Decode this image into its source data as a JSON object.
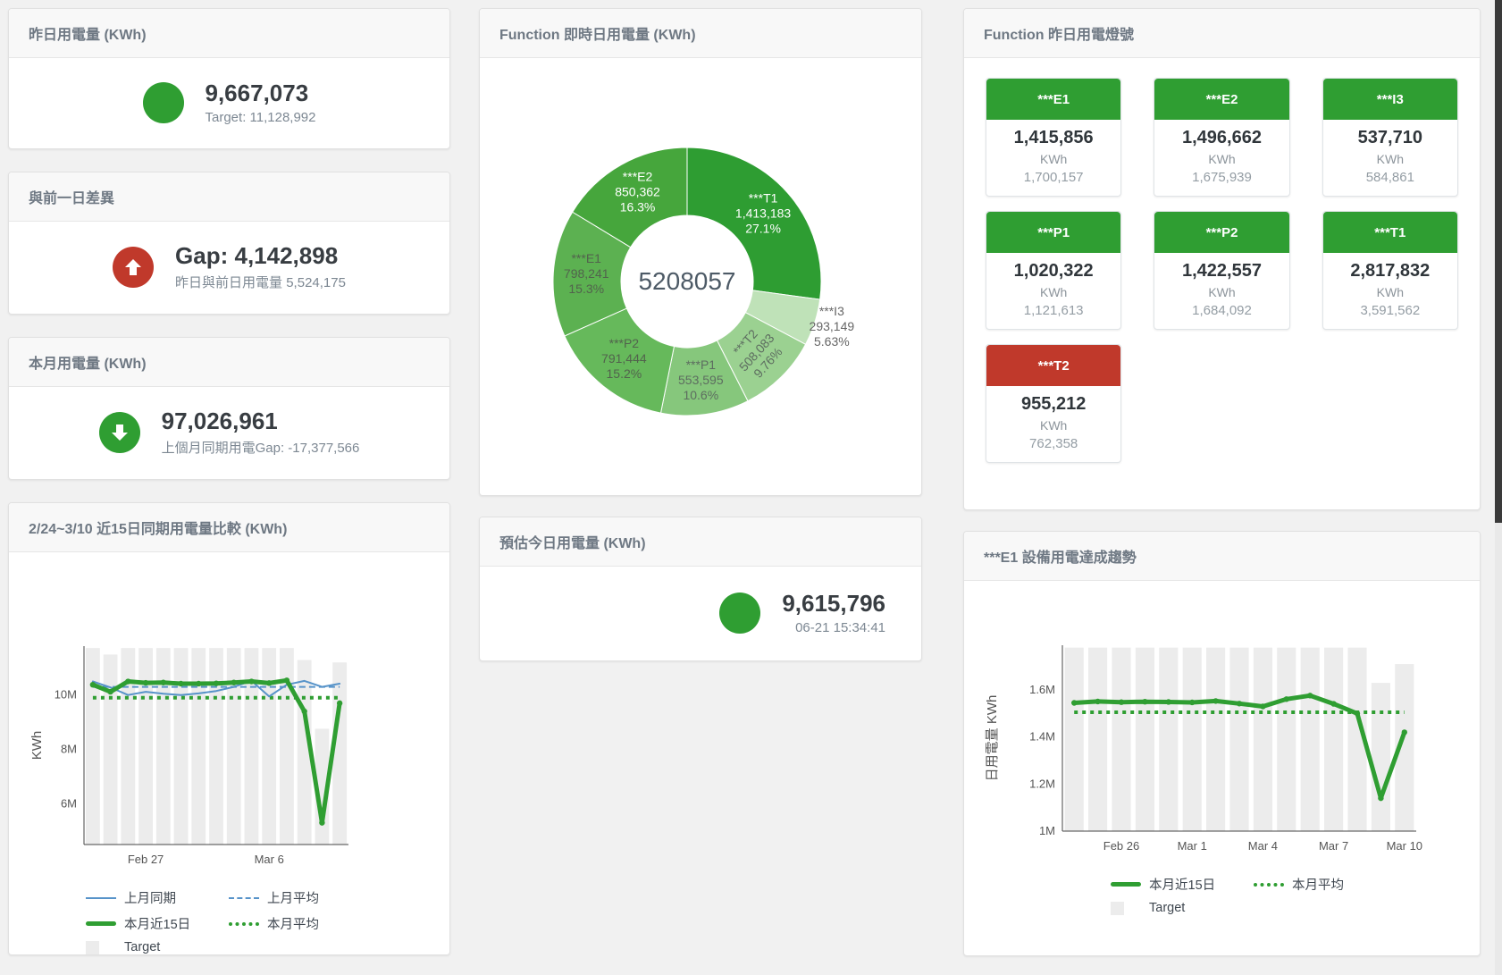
{
  "colors": {
    "green": "#2f9e32",
    "red": "#c0392b",
    "blue_line": "#5793c9",
    "bar_gray": "#ececec"
  },
  "cards": {
    "yesterday": {
      "title": "昨日用電量 (KWh)",
      "value": "9,667,073",
      "sub": "Target: 11,128,992",
      "color": "#2f9e32",
      "arrow": "none"
    },
    "gap_prev_day": {
      "title": "與前一日差異",
      "value": "Gap: 4,142,898",
      "sub": "昨日與前日用電量 5,524,175",
      "color": "#c0392b",
      "arrow": "up"
    },
    "month": {
      "title": "本月用電量 (KWh)",
      "value": "97,026,961",
      "sub": "上個月同期用電Gap: -17,377,566",
      "color": "#2f9e32",
      "arrow": "down"
    },
    "estimate": {
      "title": "預估今日用電量 (KWh)",
      "value": "9,615,796",
      "sub": "06-21 15:34:41",
      "color": "#2f9e32",
      "arrow": "none"
    }
  },
  "lights": {
    "title": "Function 昨日用電燈號",
    "unit": "KWh",
    "tiles": [
      {
        "name": "***E1",
        "value": "1,415,856",
        "unit": "KWh",
        "target": "1,700,157",
        "status_color": "#2f9e32"
      },
      {
        "name": "***E2",
        "value": "1,496,662",
        "unit": "KWh",
        "target": "1,675,939",
        "status_color": "#2f9e32"
      },
      {
        "name": "***I3",
        "value": "537,710",
        "unit": "KWh",
        "target": "584,861",
        "status_color": "#2f9e32"
      },
      {
        "name": "***P1",
        "value": "1,020,322",
        "unit": "KWh",
        "target": "1,121,613",
        "status_color": "#2f9e32"
      },
      {
        "name": "***P2",
        "value": "1,422,557",
        "unit": "KWh",
        "target": "1,684,092",
        "status_color": "#2f9e32"
      },
      {
        "name": "***T1",
        "value": "2,817,832",
        "unit": "KWh",
        "target": "3,591,562",
        "status_color": "#2f9e32"
      },
      {
        "name": "***T2",
        "value": "955,212",
        "unit": "KWh",
        "target": "762,358",
        "status_color": "#c0392b"
      }
    ]
  },
  "chart_data": [
    {
      "type": "pie",
      "title": "Function 即時日用電量 (KWh)",
      "center_total": "5208057",
      "slices": [
        {
          "name": "***T1",
          "value": 1413183,
          "display": "1,413,183",
          "pct": "27.1%",
          "color": "#2e9d32",
          "label_color": "#ffffff"
        },
        {
          "name": "***I3",
          "value": 293149,
          "display": "293,149",
          "pct": "5.63%",
          "color": "#bfe2b8",
          "label_color": "#666666",
          "outside": true
        },
        {
          "name": "***T2",
          "value": 508083,
          "display": "508,083",
          "pct": "9.76%",
          "color": "#9bd191",
          "label_color": "#5d6d60",
          "rotate": -48
        },
        {
          "name": "***P1",
          "value": 553595,
          "display": "553,595",
          "pct": "10.6%",
          "color": "#86c77c",
          "label_color": "#5d6d60"
        },
        {
          "name": "***P2",
          "value": 791444,
          "display": "791,444",
          "pct": "15.2%",
          "color": "#66b95b",
          "label_color": "#52634d"
        },
        {
          "name": "***E1",
          "value": 798241,
          "display": "798,241",
          "pct": "15.3%",
          "color": "#5cb151",
          "label_color": "#52634d"
        },
        {
          "name": "***E2",
          "value": 850362,
          "display": "850,362",
          "pct": "16.3%",
          "color": "#46a63c",
          "label_color": "#ffffff"
        }
      ]
    },
    {
      "type": "bar+line",
      "title": "2/24~3/10 近15日同期用電量比較 (KWh)",
      "ylabel": "KWh",
      "ylim": [
        4500000,
        11800000
      ],
      "yticks": [
        {
          "v": 6000000,
          "label": "6M"
        },
        {
          "v": 8000000,
          "label": "8M"
        },
        {
          "v": 10000000,
          "label": "10M"
        }
      ],
      "categories": [
        "2/24",
        "2/25",
        "2/26",
        "2/27",
        "2/28",
        "3/1",
        "3/2",
        "3/3",
        "3/4",
        "3/5",
        "3/6",
        "3/7",
        "3/8",
        "3/9",
        "3/10"
      ],
      "xticks": [
        {
          "i": 3,
          "label": "Feb 27"
        },
        {
          "i": 10,
          "label": "Mar 6"
        }
      ],
      "series": [
        {
          "name": "Target",
          "type": "bar",
          "color": "#ececec",
          "values": [
            11730000,
            11490000,
            11730000,
            11730000,
            11730000,
            11730000,
            11730000,
            11730000,
            11730000,
            11730000,
            11730000,
            11730000,
            11290000,
            8760000,
            11200000
          ]
        },
        {
          "name": "上月平均",
          "type": "line",
          "color": "#5793c9",
          "width": 2,
          "dash": "7 4",
          "values": [
            10300000,
            10300000,
            10300000,
            10300000,
            10300000,
            10300000,
            10300000,
            10300000,
            10300000,
            10300000,
            10300000,
            10300000,
            10300000,
            10300000,
            10300000
          ]
        },
        {
          "name": "本月平均",
          "type": "line",
          "color": "#2f9e32",
          "width": 4,
          "dash": "4 5",
          "values": [
            9900000,
            9900000,
            9900000,
            9900000,
            9900000,
            9900000,
            9900000,
            9900000,
            9900000,
            9900000,
            9900000,
            9900000,
            9900000,
            9900000,
            9900000
          ]
        },
        {
          "name": "上月同期",
          "type": "line",
          "color": "#5793c9",
          "width": 2,
          "values": [
            10500000,
            10280000,
            10000000,
            10120000,
            10050000,
            10000000,
            10060000,
            10150000,
            10300000,
            10520000,
            9950000,
            10380000,
            10520000,
            10300000,
            10420000
          ]
        },
        {
          "name": "本月近15日",
          "type": "line",
          "color": "#2f9e32",
          "width": 5,
          "marker": true,
          "values": [
            10380000,
            10120000,
            10500000,
            10450000,
            10460000,
            10420000,
            10420000,
            10430000,
            10460000,
            10500000,
            10440000,
            10540000,
            9400000,
            5300000,
            9700000
          ]
        }
      ],
      "legend": [
        {
          "label": "上月同期",
          "swatch": "line-blue"
        },
        {
          "label": "上月平均",
          "swatch": "dash-blue"
        },
        {
          "label": "本月近15日",
          "swatch": "thick-green"
        },
        {
          "label": "本月平均",
          "swatch": "dot-green"
        },
        {
          "label": "Target",
          "swatch": "square-gray"
        }
      ]
    },
    {
      "type": "bar+line",
      "title": "***E1 設備用電達成趨勢",
      "ylabel": "日用電量 KWh",
      "ylim": [
        1000000,
        1790000
      ],
      "yticks": [
        {
          "v": 1000000,
          "label": "1M"
        },
        {
          "v": 1200000,
          "label": "1.2M"
        },
        {
          "v": 1400000,
          "label": "1.4M"
        },
        {
          "v": 1600000,
          "label": "1.6M"
        }
      ],
      "categories": [
        "2/24",
        "2/25",
        "2/26",
        "2/27",
        "2/28",
        "3/1",
        "3/2",
        "3/3",
        "3/4",
        "3/5",
        "3/6",
        "3/7",
        "3/8",
        "3/9",
        "3/10"
      ],
      "xticks": [
        {
          "i": 2,
          "label": "Feb 26"
        },
        {
          "i": 5,
          "label": "Mar 1"
        },
        {
          "i": 8,
          "label": "Mar 4"
        },
        {
          "i": 11,
          "label": "Mar 7"
        },
        {
          "i": 14,
          "label": "Mar 10"
        }
      ],
      "series": [
        {
          "name": "Target",
          "type": "bar",
          "color": "#ececec",
          "values": [
            1780000,
            1780000,
            1780000,
            1780000,
            1780000,
            1780000,
            1780000,
            1780000,
            1780000,
            1780000,
            1780000,
            1780000,
            1780000,
            1630000,
            1710000
          ]
        },
        {
          "name": "本月平均",
          "type": "line",
          "color": "#2f9e32",
          "width": 4,
          "dash": "4 5",
          "values": [
            1505000,
            1505000,
            1505000,
            1505000,
            1505000,
            1505000,
            1505000,
            1505000,
            1505000,
            1505000,
            1505000,
            1505000,
            1505000,
            1505000,
            1505000
          ]
        },
        {
          "name": "本月近15日",
          "type": "line",
          "color": "#2f9e32",
          "width": 5,
          "marker": true,
          "values": [
            1545000,
            1551000,
            1548000,
            1550000,
            1549000,
            1547000,
            1553000,
            1542000,
            1530000,
            1561000,
            1576000,
            1541000,
            1500000,
            1140000,
            1420000
          ]
        }
      ],
      "legend": [
        {
          "label": "本月近15日",
          "swatch": "thick-green"
        },
        {
          "label": "本月平均",
          "swatch": "dot-green"
        },
        {
          "label": "Target",
          "swatch": "square-gray"
        }
      ]
    }
  ]
}
